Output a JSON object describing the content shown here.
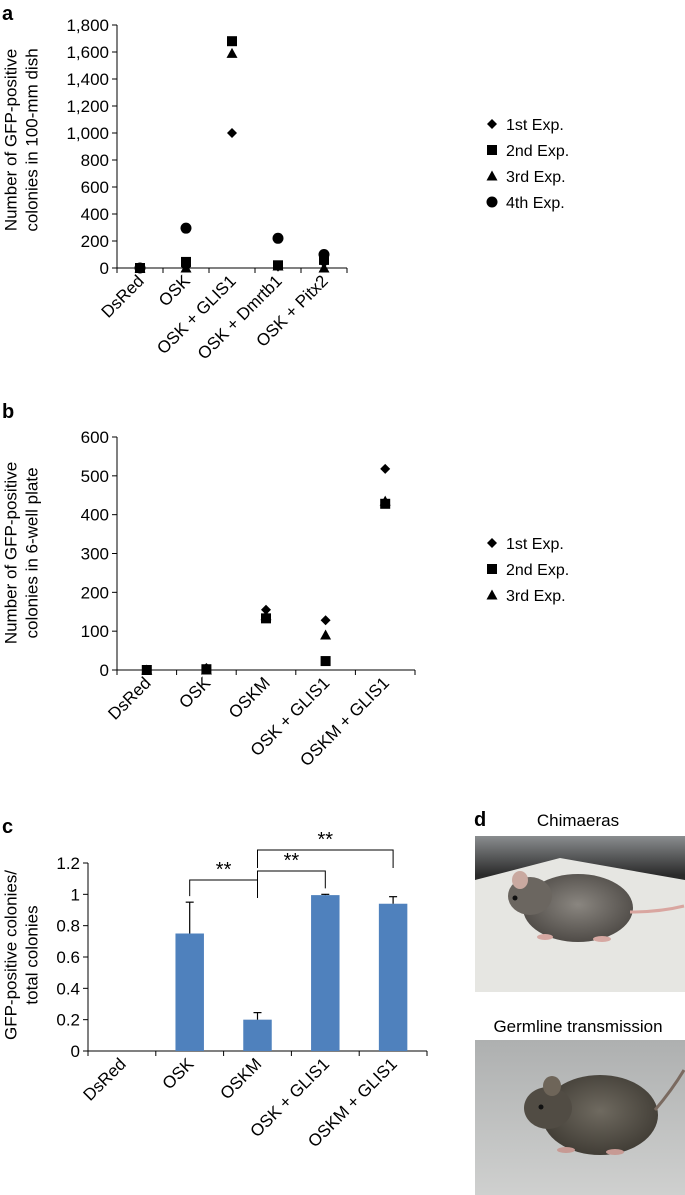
{
  "chart_data": [
    {
      "type": "scatter",
      "panel": "a",
      "ylabel_lines": [
        "Number of GFP-positive",
        "colonies in 100-mm dish"
      ],
      "categories": [
        "DsRed",
        "OSK",
        "OSK + GLIS1",
        "OSK + Dmrtb1",
        "OSK + Pitx2"
      ],
      "yticks": [
        "0",
        "200",
        "400",
        "600",
        "800",
        "1,000",
        "1,200",
        "1,400",
        "1,600",
        "1,800"
      ],
      "ylim": [
        0,
        1800
      ],
      "legend_position": "right",
      "series": [
        {
          "name": "1st Exp.",
          "marker": "diamond",
          "values": [
            0,
            10,
            1000,
            10,
            40
          ]
        },
        {
          "name": "2nd Exp.",
          "marker": "square",
          "values": [
            0,
            45,
            1680,
            20,
            60
          ]
        },
        {
          "name": "3rd Exp.",
          "marker": "triangle",
          "values": [
            0,
            0,
            1590,
            15,
            0
          ]
        },
        {
          "name": "4th Exp.",
          "marker": "circle",
          "values": [
            0,
            295,
            null,
            220,
            100
          ]
        }
      ]
    },
    {
      "type": "scatter",
      "panel": "b",
      "ylabel_lines": [
        "Number of GFP-positive",
        "colonies in 6-well plate"
      ],
      "categories": [
        "DsRed",
        "OSK",
        "OSKM",
        "OSK + GLIS1",
        "OSKM + GLIS1"
      ],
      "yticks": [
        "0",
        "100",
        "200",
        "300",
        "400",
        "500",
        "600"
      ],
      "ylim": [
        0,
        600
      ],
      "legend_position": "right",
      "series": [
        {
          "name": "1st Exp.",
          "marker": "diamond",
          "values": [
            0,
            5,
            155,
            128,
            518
          ]
        },
        {
          "name": "2nd Exp.",
          "marker": "square",
          "values": [
            0,
            2,
            133,
            23,
            428
          ]
        },
        {
          "name": "3rd Exp.",
          "marker": "triangle",
          "values": [
            0,
            0,
            140,
            90,
            435
          ]
        }
      ]
    },
    {
      "type": "bar",
      "panel": "c",
      "ylabel_lines": [
        "GFP-positive colonies/",
        "total colonies"
      ],
      "categories": [
        "DsRed",
        "OSK",
        "OSKM",
        "OSK + GLIS1",
        "OSKM + GLIS1"
      ],
      "yticks": [
        "0",
        "0.2",
        "0.4",
        "0.6",
        "0.8",
        "1",
        "1.2"
      ],
      "ylim": [
        0,
        1.2
      ],
      "values": [
        0,
        0.75,
        0.2,
        0.995,
        0.94
      ],
      "errors": [
        0,
        0.2,
        0.045,
        0.005,
        0.045
      ],
      "bar_color": "#4f81bd",
      "significance": [
        {
          "from": "OSK",
          "to": "OSKM",
          "label": "**"
        },
        {
          "from": "OSKM",
          "to": "OSK + GLIS1",
          "label": "**"
        },
        {
          "from": "OSKM",
          "to": "OSKM + GLIS1",
          "label": "**"
        }
      ]
    }
  ],
  "panel_d": {
    "letter": "d",
    "photo_titles": [
      "Chimaeras",
      "Germline transmission"
    ]
  }
}
